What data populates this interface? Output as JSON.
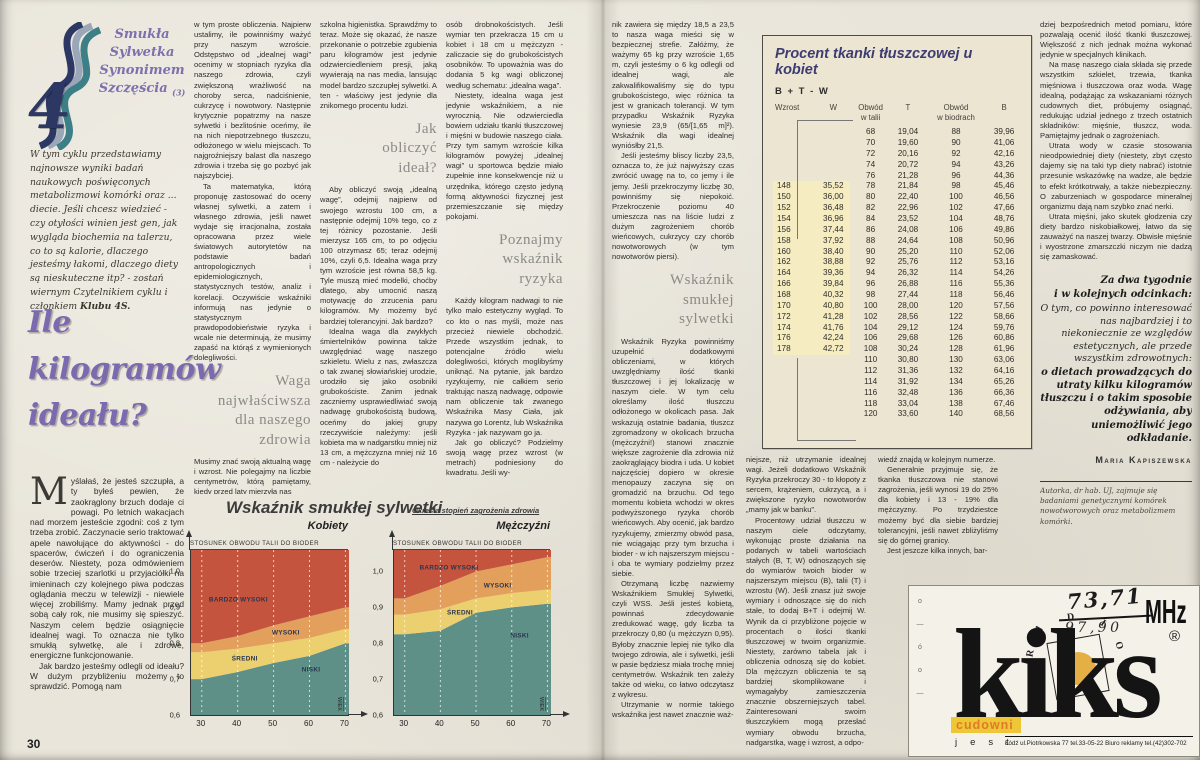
{
  "page_number": "30",
  "logo": {
    "series_lines": "Smukła\nSylwetka\nSynonimem\nSzczęścia",
    "issue": "(3)",
    "numeral": "4"
  },
  "intro": {
    "text": "W tym cyklu przedstawiamy najnowsze wyniki badań naukowych poświęconych metabolizmowi komórki oraz ... diecie. Jeśli chcesz wiedzieć - czy otyłości winien jest gen, jak wygląda biochemia na talerzu, co to są kalorie, dlaczego jesteśmy łakomi, dlaczego diety są nieskuteczne itp? - zostań wiernym Czytelnikiem cyklu i członkiem ",
    "bold": "Klubu 4S."
  },
  "left": {
    "title": "Ile\nkilogramów\nideału?",
    "col1": {
      "dropcap": "M",
      "para1": "yślałaś, że jesteś szczupła, a ty byłeś pewien, że zaokrąglony brzuch dodaje ci powagi. Po letnich wakacjach nad morzem jesteście zgodni: coś z tym trzeba zrobić. Zaczynacie serio traktować apele nawołujące do aktywności - do spacerów, ćwiczeń i do ograniczenia deserów. Niestety, poza odmówieniem sobie trzeciej szarlotki u przyjaciółki na imieninach czy kolejnego piwa podczas oglądania meczu w telewizji - niewiele więcej zrobiliśmy. Mamy jednak przed sobą cały rok, nie musimy się spieszyć. Naszym celem będzie osiągnięcie idealnej wagi. To oznacza nie tylko smukłą sylwetkę, ale i zdrowe, energiczne funkcjonowanie.",
      "para2": "Jak bardzo jesteśmy odlegli od ideału? W dużym przybliżeniu możemy to sprawdzić. Pomogą nam"
    },
    "col2": {
      "para1": "w tym proste obliczenia. Najpierw ustalimy, ile powinniśmy ważyć przy naszym wzroście. Odstępstwo od „idealnej wagi” ocenimy w stopniach ryzyka dla naszego zdrowia, czyli zwiększoną wrażliwość na choroby serca, nadciśnienie, cukrzycę i nowotwory. Następnie krytycznie popatrzmy na nasze sylwetki i bezlitośnie oceńmy, ile na nich niepotrzebnego tłuszczu, odłożonego w wielu miejscach. To najgroźniejszy balast dla naszego zdrowia i trzeba się go pozbyć jak najszybciej.",
      "para2": "Ta matematyka, którą proponuję zastosować do oceny własnej sylwetki, a zatem i własnego zdrowia, jeśli nawet wydaje się irracjonalna, została opracowana przez wiele światowych autorytetów na podstawie badań antropologicznych i epidemiologicznych, statystycznych testów, analiz i korelacji. Oczywiście wskaźniki informują nas jedynie o statystycznym prawdopodobieństwie ryzyka i wcale nie determinują, że musimy zapaść na którąś z wymienionych dolegliwości.",
      "subhead": "Waga\nnajwłaściwsza\ndla naszego\nzdrowia",
      "para3": "Musimy znać swoją aktualną wagę i wzrost. Nie polegajmy na liczbie centymetrów, którą pamiętamy, kiedy przed laty mierzyła nas"
    },
    "col3": {
      "para1": "szkolna higienistka. Sprawdźmy to teraz. Może się okazać, że nasze przekonanie o potrzebie zgubienia paru kilogramów jest jedynie odzwierciedleniem presji, jaką wywierają na nas media, lansując model bardzo szczupłej sylwetki. A ten - właściwy jest jedynie dla znikomego procentu ludzi.",
      "subhead": "Jak\nobliczyć\nideał?",
      "para2": "Aby obliczyć swoją „idealną wagę”, odejmij najpierw od swojego wzrostu 100 cm, a następnie odejmij 10% tego, co z tej różnicy pozostanie. Jeśli mierzysz 165 cm, to po odjęciu 100 otrzymasz 65; teraz odejmij 10%, czyli 6,5. Idealna waga przy tym wzroście jest równa 58,5 kg. Tyle muszą mieć modelki, choćby dlatego, aby umocnić naszą motywację do zrzucenia paru kilogramów. My możemy być bardziej tolerancyjni. Jak bardzo?",
      "para3": "Idealna waga dla zwykłych śmiertelników powinna także uwzględniać wagę naszego szkieletu. Wielu z nas, zwłaszcza o tak zwanej słowiańskiej urodzie, urodziło się jako osobniki grubokościste. Zanim jednak zaczniemy usprawiedliwiać swoją nadwagę grubokościstą budową, oceńmy do jakiej grupy rzeczywiście należymy: jeśli kobieta ma w nadgarstku mniej niż 13 cm, a mężczyzna mniej niż 16 cm - należycie do"
    },
    "col4": {
      "para1": "osób drobnokościstych. Jeśli wymiar ten przekracza 15 cm u kobiet i 18 cm u mężczyzn - zaliczacie się do grubokościstych osobników. To upoważnia was do dodania 5 kg wagi obliczonej według schematu: „idealna waga”.",
      "para2": "Niestety, idealna waga jest jedynie wskaźnikiem, a nie wyrocznią. Nie odzwierciedla bowiem udziału tkanki tłuszczowej i mięśni w budowie naszego ciała. Przy tym samym wzroście kilka kilogramów powyżej „idealnej wagi” u sportowca będzie miało zupełnie inne konsekwencje niż u urzędnika, którego często jedyną formą aktywności fizycznej jest przemieszczanie się między pokojami.",
      "subhead": "Poznajmy\nwskaźnik\nryzyka",
      "para3": "Każdy kilogram nadwagi to nie tylko mało estetyczny wygląd. To co kto o nas myśli, może nas przecież niewiele obchodzić. Przede wszystkim jednak, to potencjalne źródło wielu dolegliwości, których moglibyśmy uniknąć. Na pytanie, jak bardzo ryzykujemy, nie całkiem serio traktując naszą nadwagę, odpowie nam obliczenie tak zwanego Wskaźnika Masy Ciała, jak nazywa go Lorentz, lub Wskaźnika Ryzyka - jak nazywam go ja.",
      "para4": "Jak go obliczyć? Podzielmy swoją wagę przez wzrost (w metrach) podniesiony do kwadratu. Jeśli wy-"
    }
  },
  "right": {
    "colA": {
      "para1": "nik zawiera się między 18,5 a 23,5 to nasza waga mieści się w bezpiecznej strefie. Załóżmy, że ważymy 65 kg przy wzroście 1,65 m, czyli jesteśmy o 6 kg odlegli od idealnej wagi, ale zakwalifikowaliśmy się do typu grubokościstego, więc różnica ta jest w granicach tolerancji. W tym przypadku Wskaźnik Ryzyka wyniesie 23,9 (65/[1,65 m]²). Wskaźnik dla wagi idealnej wyniósłby 21,5.",
      "para2": "Jeśli jesteśmy bliscy liczby 23,5, oznacza to, że już najwyższy czas zwrócić uwagę na to, co jemy i ile jemy. Jeśli przekroczymy liczbę 30, powinniśmy się niepokoić. Przekroczenie poziomu 40 umieszcza nas na liście ludzi z dużym zagrożeniem chorób wieńcowych, cukrzycy czy chorób nowotworowych (w tym nowotworów piersi).",
      "subhead": "Wskaźnik\nsmukłej\nsylwetki",
      "para3": "Wskaźnik Ryzyka powinniśmy uzupełnić dodatkowymi obliczeniami, w których uwzględniamy ilość tkanki tłuszczowej i jej lokalizację w naszym ciele. W tym celu określamy ilość tłuszczu odłożonego w okolicach pasa. Jak wskazują ostatnie badania, tłuszcz zgromadzony w okolicach brzucha (mężczyźni!) stanowi znacznie większe zagrożenie dla zdrowia niż zaokrąglający biodra i uda. U kobiet najczęściej dopiero w okresie menopauzy zaczyna się on gromadzić na brzuchu. Od tego momentu kobieta wchodzi w okres podwyższonego ryzyka chorób wieńcowych. Aby ocenić, jak bardzo ryzykujemy, zmierzmy obwód pasa, nie wciągając przy tym brzucha i bioder - w ich najszerszym miejscu - i oba te wymiary podzielmy przez siebie.",
      "para4": "Otrzymaną liczbę nazwiemy Wskaźnikiem Smukłej Sylwetki, czyli WSS. Jeśli jesteś kobietą, powinnaś zdecydowanie zredukować wagę, gdy liczba ta przekroczy 0,80 (u mężczyzn 0,95). Byłoby znacznie lepiej nie tylko dla twojego zdrowia, ale i sylwetki, jeśli w pasie będziesz miała trochę mniej centymetrów. Wskaźnik ten zależy także od wieku, co łatwo odczytasz z wykresu.",
      "para5": "Utrzymanie w normie takiego wskaźnika jest nawet znacznie waż-"
    },
    "colB": {
      "para1": "niejsze, niż utrzymanie idealnej wagi. Jeżeli dodatkowo Wskaźnik Ryzyka przekroczy 30 - to kłopoty z sercem, krążeniem, cukrzycą, a i zwiększone ryzyko nowotworów „mamy jak w banku”.",
      "para2": "Procentowy udział tłuszczu w naszym ciele odczytamy, wykonując proste działania na podanych w tabeli wartościach stałych (B, T, W) odnoszących się do wymiarów twoich bioder w najszerszym miejscu (B), talii (T) i wzrostu (W). Jeśli znasz już swoje wymiary i odnoszące się do nich stałe, to dodaj B+T i odejmij W. Wynik da ci przybliżone pojęcie w procentach o ilości tkanki tłuszczowej w twoim organizmie. Niestety, zarówno tabela jak i obliczenia odnoszą się do kobiet. Dla mężczyzn obliczenia te są bardziej skomplikowane i wymagałyby zamieszczenia znacznie obszerniejszych tabel. Zainteresowani swoim tłuszczykiem mogą przesłać wymiary obwodu brzucha, nadgarstka, wagę i wzrost, a odpo-"
    },
    "colC": {
      "para1": "wiedź znajdą w kolejnym numerze.",
      "para2": "Generalnie przyjmuje się, że tkanka tłuszczowa nie stanowi zagrożenia, jeśli wynosi 19 do 25% dla kobiety i 13 - 19% dla mężczyzny. Po trzydziestce możemy być dla siebie bardziej tolerancyjni, jeśli nawet zbliżyliśmy się do górnej granicy.",
      "para3": "Jest jeszcze kilka innych, bar-"
    },
    "colD": {
      "para1": "dziej bezpośrednich metod pomiaru, które pozwalają ocenić ilość tkanki tłuszczowej. Większość z nich jednak można wykonać jedynie w specjalnych klinikach.",
      "para2": "Na masę naszego ciała składa się przede wszystkim szkielet, trzewia, tkanka mięśniowa i tłuszczowa oraz woda. Wagę idealną, podążając za wskazaniami różnych cudownych diet, próbujemy osiągnąć, redukując udział jednego z trzech ostatnich składników: mięśnie, tłuszcz, woda. Pamiętajmy jednak o zagrożeniach.",
      "para3": "Utrata wody w czasie stosowania nieodpowiedniej diety (niestety, zbyt często dajemy się na taki typ diety nabrać) istotnie przesunie wskazówkę na wadze, ale będzie to efekt krótkotrwały, a także niebezpieczny. O zaburzeniach w gospodarce mineralnej organizmu dają nam szybko znać nerki.",
      "para4": "Utrata mięśni, jako skutek głodzenia czy diety bardzo niskobiałkowej, łatwo da się zauważyć na naszej twarzy. Obwisłe mięśnie i wyostrzone zmarszczki niczym nie dadzą się zamaskować."
    },
    "teaser": {
      "heading": "Za dwa tygodnie\ni w kolejnych odcinkach:",
      "body": "O tym, co powinno interesować nas najbardziej i to niekoniecznie ze względów estetycznych, ale przede wszystkim zdrowotnych:",
      "emphasis": "o dietach prowadzących do utraty kilku kilogramów tłuszczu i o takim sposobie odżywiania, aby uniemożliwić jego odkładanie."
    },
    "byline": "Maria Kapiszewska",
    "credit": "Autorka, dr hab. UJ, zajmuje się badaniami genetycznymi komórek nowotworowych oraz metabolizmem komórki."
  },
  "table": {
    "title": "Procent tkanki tłuszczowej u kobiet",
    "formula": "B + T - W",
    "col_headers": [
      "Wzrost",
      "W",
      "Obwód\nw talii",
      "T",
      "Obwód\nw biodrach",
      "B"
    ],
    "rows": [
      [
        "",
        "",
        "68",
        "19,04",
        "88",
        "39,96"
      ],
      [
        "",
        "",
        "70",
        "19,60",
        "90",
        "41,06"
      ],
      [
        "",
        "",
        "72",
        "20,16",
        "92",
        "42,16"
      ],
      [
        "",
        "",
        "74",
        "20,72",
        "94",
        "43,26"
      ],
      [
        "",
        "",
        "76",
        "21,28",
        "96",
        "44,36"
      ],
      [
        "148",
        "35,52",
        "78",
        "21,84",
        "98",
        "45,46"
      ],
      [
        "150",
        "36,00",
        "80",
        "22,40",
        "100",
        "46,56"
      ],
      [
        "152",
        "36,48",
        "82",
        "22,96",
        "102",
        "47,66"
      ],
      [
        "154",
        "36,96",
        "84",
        "23,52",
        "104",
        "48,76"
      ],
      [
        "156",
        "37,44",
        "86",
        "24,08",
        "106",
        "49,86"
      ],
      [
        "158",
        "37,92",
        "88",
        "24,64",
        "108",
        "50,96"
      ],
      [
        "160",
        "38,40",
        "90",
        "25,20",
        "110",
        "52,06"
      ],
      [
        "162",
        "38,88",
        "92",
        "25,76",
        "112",
        "53,16"
      ],
      [
        "164",
        "39,36",
        "94",
        "26,32",
        "114",
        "54,26"
      ],
      [
        "166",
        "39,84",
        "96",
        "26,88",
        "116",
        "55,36"
      ],
      [
        "168",
        "40,32",
        "98",
        "27,44",
        "118",
        "56,46"
      ],
      [
        "170",
        "40,80",
        "100",
        "28,00",
        "120",
        "57,56"
      ],
      [
        "172",
        "41,28",
        "102",
        "28,56",
        "122",
        "58,66"
      ],
      [
        "174",
        "41,76",
        "104",
        "29,12",
        "124",
        "59,76"
      ],
      [
        "176",
        "42,24",
        "106",
        "29,68",
        "126",
        "60,86"
      ],
      [
        "178",
        "42,72",
        "108",
        "30,24",
        "128",
        "61,96"
      ],
      [
        "",
        "",
        "110",
        "30,80",
        "130",
        "63,06"
      ],
      [
        "",
        "",
        "112",
        "31,36",
        "132",
        "64,16"
      ],
      [
        "",
        "",
        "114",
        "31,92",
        "134",
        "65,26"
      ],
      [
        "",
        "",
        "116",
        "32,48",
        "136",
        "66,36"
      ],
      [
        "",
        "",
        "118",
        "33,04",
        "138",
        "67,46"
      ],
      [
        "",
        "",
        "120",
        "33,60",
        "140",
        "68,56"
      ]
    ]
  },
  "chart_data": {
    "type": "area",
    "title": "Wskaźnik smukłej sylwetki",
    "subtitle": "Określa stopień zagrożenia zdrowia",
    "inner_label": "STOSUNEK OBWODU TALII DO BIODER",
    "xlabel": "WIEK",
    "x_ticks": [
      "30",
      "40",
      "50",
      "60",
      "70"
    ],
    "y_ticks": [
      "1,0",
      "0,9",
      "0,8",
      "0,7",
      "0,6"
    ],
    "ylim": [
      0.6,
      1.06
    ],
    "ages": [
      30,
      40,
      50,
      60,
      70
    ],
    "panels": [
      {
        "name": "Kobiety",
        "zones": [
          {
            "label": "NISKI",
            "upper": [
              0.7,
              0.72,
              0.745,
              0.765,
              0.8
            ]
          },
          {
            "label": "ŚREDNI",
            "upper": [
              0.775,
              0.785,
              0.8,
              0.815,
              0.84
            ]
          },
          {
            "label": "WYSOKI",
            "upper": [
              0.8,
              0.82,
              0.85,
              0.875,
              0.9
            ]
          },
          {
            "label": "BARDZO WYSOKI",
            "upper": [
              1.06,
              1.06,
              1.06,
              1.06,
              1.06
            ]
          }
        ]
      },
      {
        "name": "Mężczyźni",
        "zones": [
          {
            "label": "NISKI",
            "upper": [
              0.825,
              0.835,
              0.885,
              0.9,
              0.91
            ]
          },
          {
            "label": "ŚREDNI",
            "upper": [
              0.88,
              0.895,
              0.925,
              0.94,
              0.95
            ]
          },
          {
            "label": "WYSOKI",
            "upper": [
              0.925,
              0.96,
              1.0,
              1.02,
              1.04
            ]
          },
          {
            "label": "BARDZO WYSOKI",
            "upper": [
              1.06,
              1.06,
              1.06,
              1.06,
              1.06
            ]
          }
        ]
      }
    ],
    "zone_colors": {
      "NISKI": "#5e9088",
      "ŚREDNI": "#ecd06f",
      "WYSOKI": "#e2a05c",
      "BARDZO WYSOKI": "#c4543d"
    }
  },
  "ad": {
    "side_marks": "o\n—\nó\no\n—",
    "freq_top": "73,71",
    "freq_bottom": "97,90",
    "unit": "MHz",
    "radio_letters": [
      "R",
      "A",
      "D",
      "I",
      "O"
    ],
    "brand": "kiks",
    "registered": "®",
    "highlight_word": "cudowni",
    "tagline": "jest",
    "address": "Łódź ul.Piotrkowska 77 tel.33-05-22   Biuro reklamy tel.(42)302-702"
  }
}
